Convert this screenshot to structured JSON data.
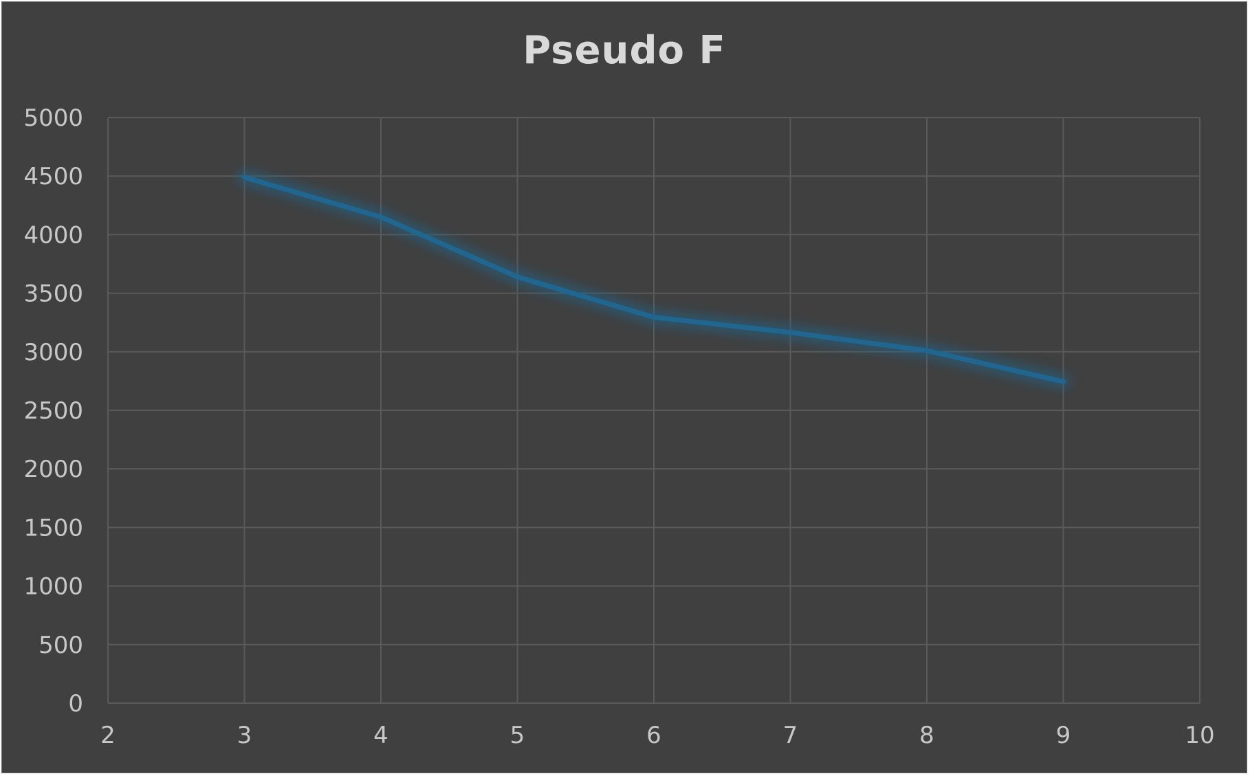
{
  "chart_data": {
    "type": "line",
    "title": "Pseudo F",
    "xlabel": "",
    "ylabel": "",
    "xlim": [
      2,
      10
    ],
    "ylim": [
      0,
      5000
    ],
    "x_ticks": [
      2,
      3,
      4,
      5,
      6,
      7,
      8,
      9,
      10
    ],
    "y_ticks": [
      0,
      500,
      1000,
      1500,
      2000,
      2500,
      3000,
      3500,
      4000,
      4500,
      5000
    ],
    "grid": true,
    "legend": "none",
    "series": [
      {
        "x": [
          3,
          4,
          5,
          6,
          7,
          8,
          9
        ],
        "y": [
          4490,
          4150,
          3640,
          3295,
          3165,
          3010,
          2745
        ]
      }
    ],
    "colors": {
      "background": "#404040",
      "grid": "#5a5a5a",
      "line": "#1f6791",
      "text": "#c8c8c8"
    }
  }
}
